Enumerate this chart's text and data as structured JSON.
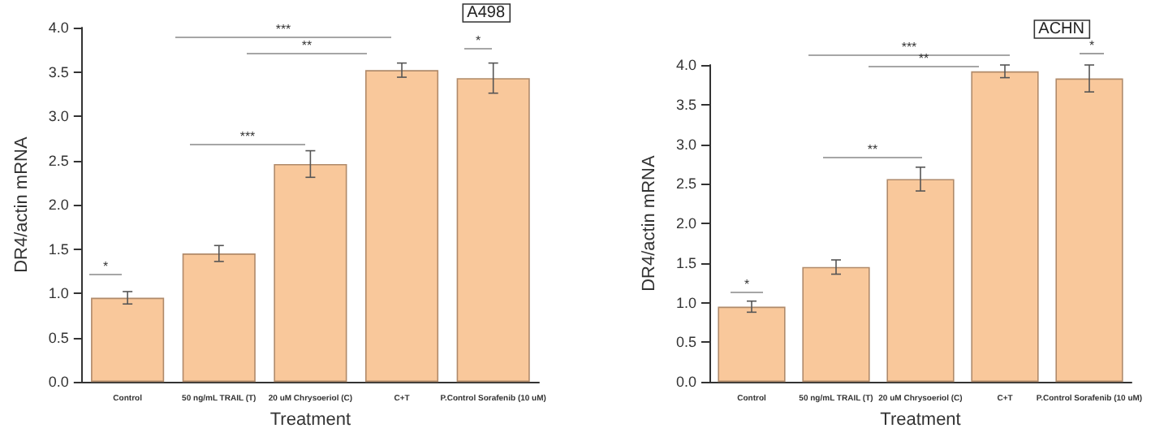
{
  "chart_data": [
    {
      "type": "bar",
      "title": "A498",
      "xlabel": "Treatment",
      "ylabel": "DR4/actin mRNA",
      "categories": [
        "Control",
        "50 ng/mL TRAIL (T)",
        "20 uM Chrysoeriol (C)",
        "C+T",
        "P.Control Sorafenib (10 uM)"
      ],
      "values": [
        0.95,
        1.45,
        2.46,
        3.52,
        3.43
      ],
      "errors": [
        0.07,
        0.09,
        0.15,
        0.08,
        0.17
      ],
      "color": "#f9c89b",
      "ylim": [
        0,
        4
      ],
      "yticks": [
        {
          "value": 0,
          "label": "0.0"
        },
        {
          "value": 0.5,
          "label": "0.5"
        },
        {
          "value": 1,
          "label": "1.0"
        },
        {
          "value": 1.5,
          "label": "1.5"
        },
        {
          "value": 2,
          "label": "2.0"
        },
        {
          "value": 2.5,
          "label": "2.5"
        },
        {
          "value": 3,
          "label": "3.0"
        },
        {
          "value": 3.5,
          "label": "3.5"
        },
        {
          "value": 4,
          "label": "4.0"
        }
      ],
      "grid": false,
      "annotations": [
        "*",
        "***",
        "***",
        "**",
        "*"
      ]
    },
    {
      "type": "bar",
      "title": "ACHN",
      "xlabel": "Treatment",
      "ylabel": "DR4/actin mRNA",
      "categories": [
        "Control",
        "50 ng/mL TRAIL (T)",
        "20 uM Chrysoeriol (C)",
        "C+T",
        "P.Control Sorafenib (10 uM)"
      ],
      "values": [
        0.95,
        1.45,
        2.56,
        3.92,
        3.83
      ],
      "errors": [
        0.07,
        0.09,
        0.15,
        0.08,
        0.17
      ],
      "color": "#f9c89b",
      "ylim": [
        0,
        4
      ],
      "yticks": [
        {
          "value": 0,
          "label": "0.0"
        },
        {
          "value": 0.5,
          "label": "0.5"
        },
        {
          "value": 1,
          "label": "1.0"
        },
        {
          "value": 1.5,
          "label": "1.5"
        },
        {
          "value": 2,
          "label": "2.0"
        },
        {
          "value": 2.5,
          "label": "2.5"
        },
        {
          "value": 3,
          "label": "3.0"
        },
        {
          "value": 3.5,
          "label": "3.5"
        },
        {
          "value": 4,
          "label": "4.0"
        }
      ],
      "grid": false,
      "annotations": [
        "*",
        "**",
        "***",
        "**",
        "*"
      ]
    }
  ]
}
